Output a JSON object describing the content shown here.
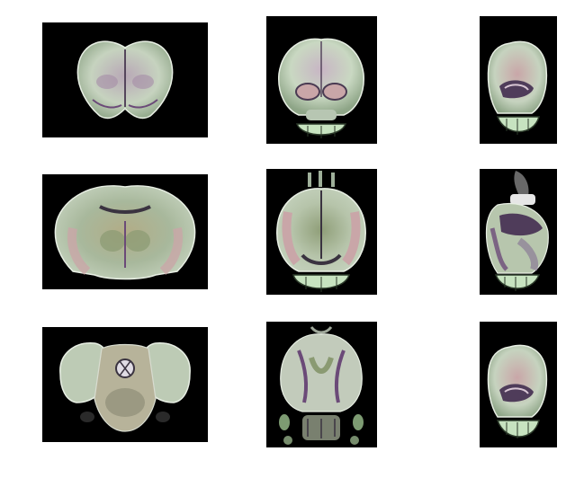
{
  "figure": {
    "rows": 3,
    "columns": 3,
    "panels": [
      {
        "row": 1,
        "col": 1,
        "view": "coronal"
      },
      {
        "row": 1,
        "col": 2,
        "view": "axial"
      },
      {
        "row": 1,
        "col": 3,
        "view": "sagittal"
      },
      {
        "row": 2,
        "col": 1,
        "view": "coronal"
      },
      {
        "row": 2,
        "col": 2,
        "view": "axial"
      },
      {
        "row": 2,
        "col": 3,
        "view": "sagittal"
      },
      {
        "row": 3,
        "col": 1,
        "view": "coronal"
      },
      {
        "row": 3,
        "col": 2,
        "view": "axial"
      },
      {
        "row": 3,
        "col": 3,
        "view": "sagittal"
      }
    ],
    "colors": {
      "background": "#000000",
      "tissue_light": "#c9d9c4",
      "tissue_green": "#a8c79a",
      "tissue_pink": "#c9a6a8",
      "tissue_purple": "#6b4a78",
      "tissue_dark": "#3a3340"
    }
  }
}
